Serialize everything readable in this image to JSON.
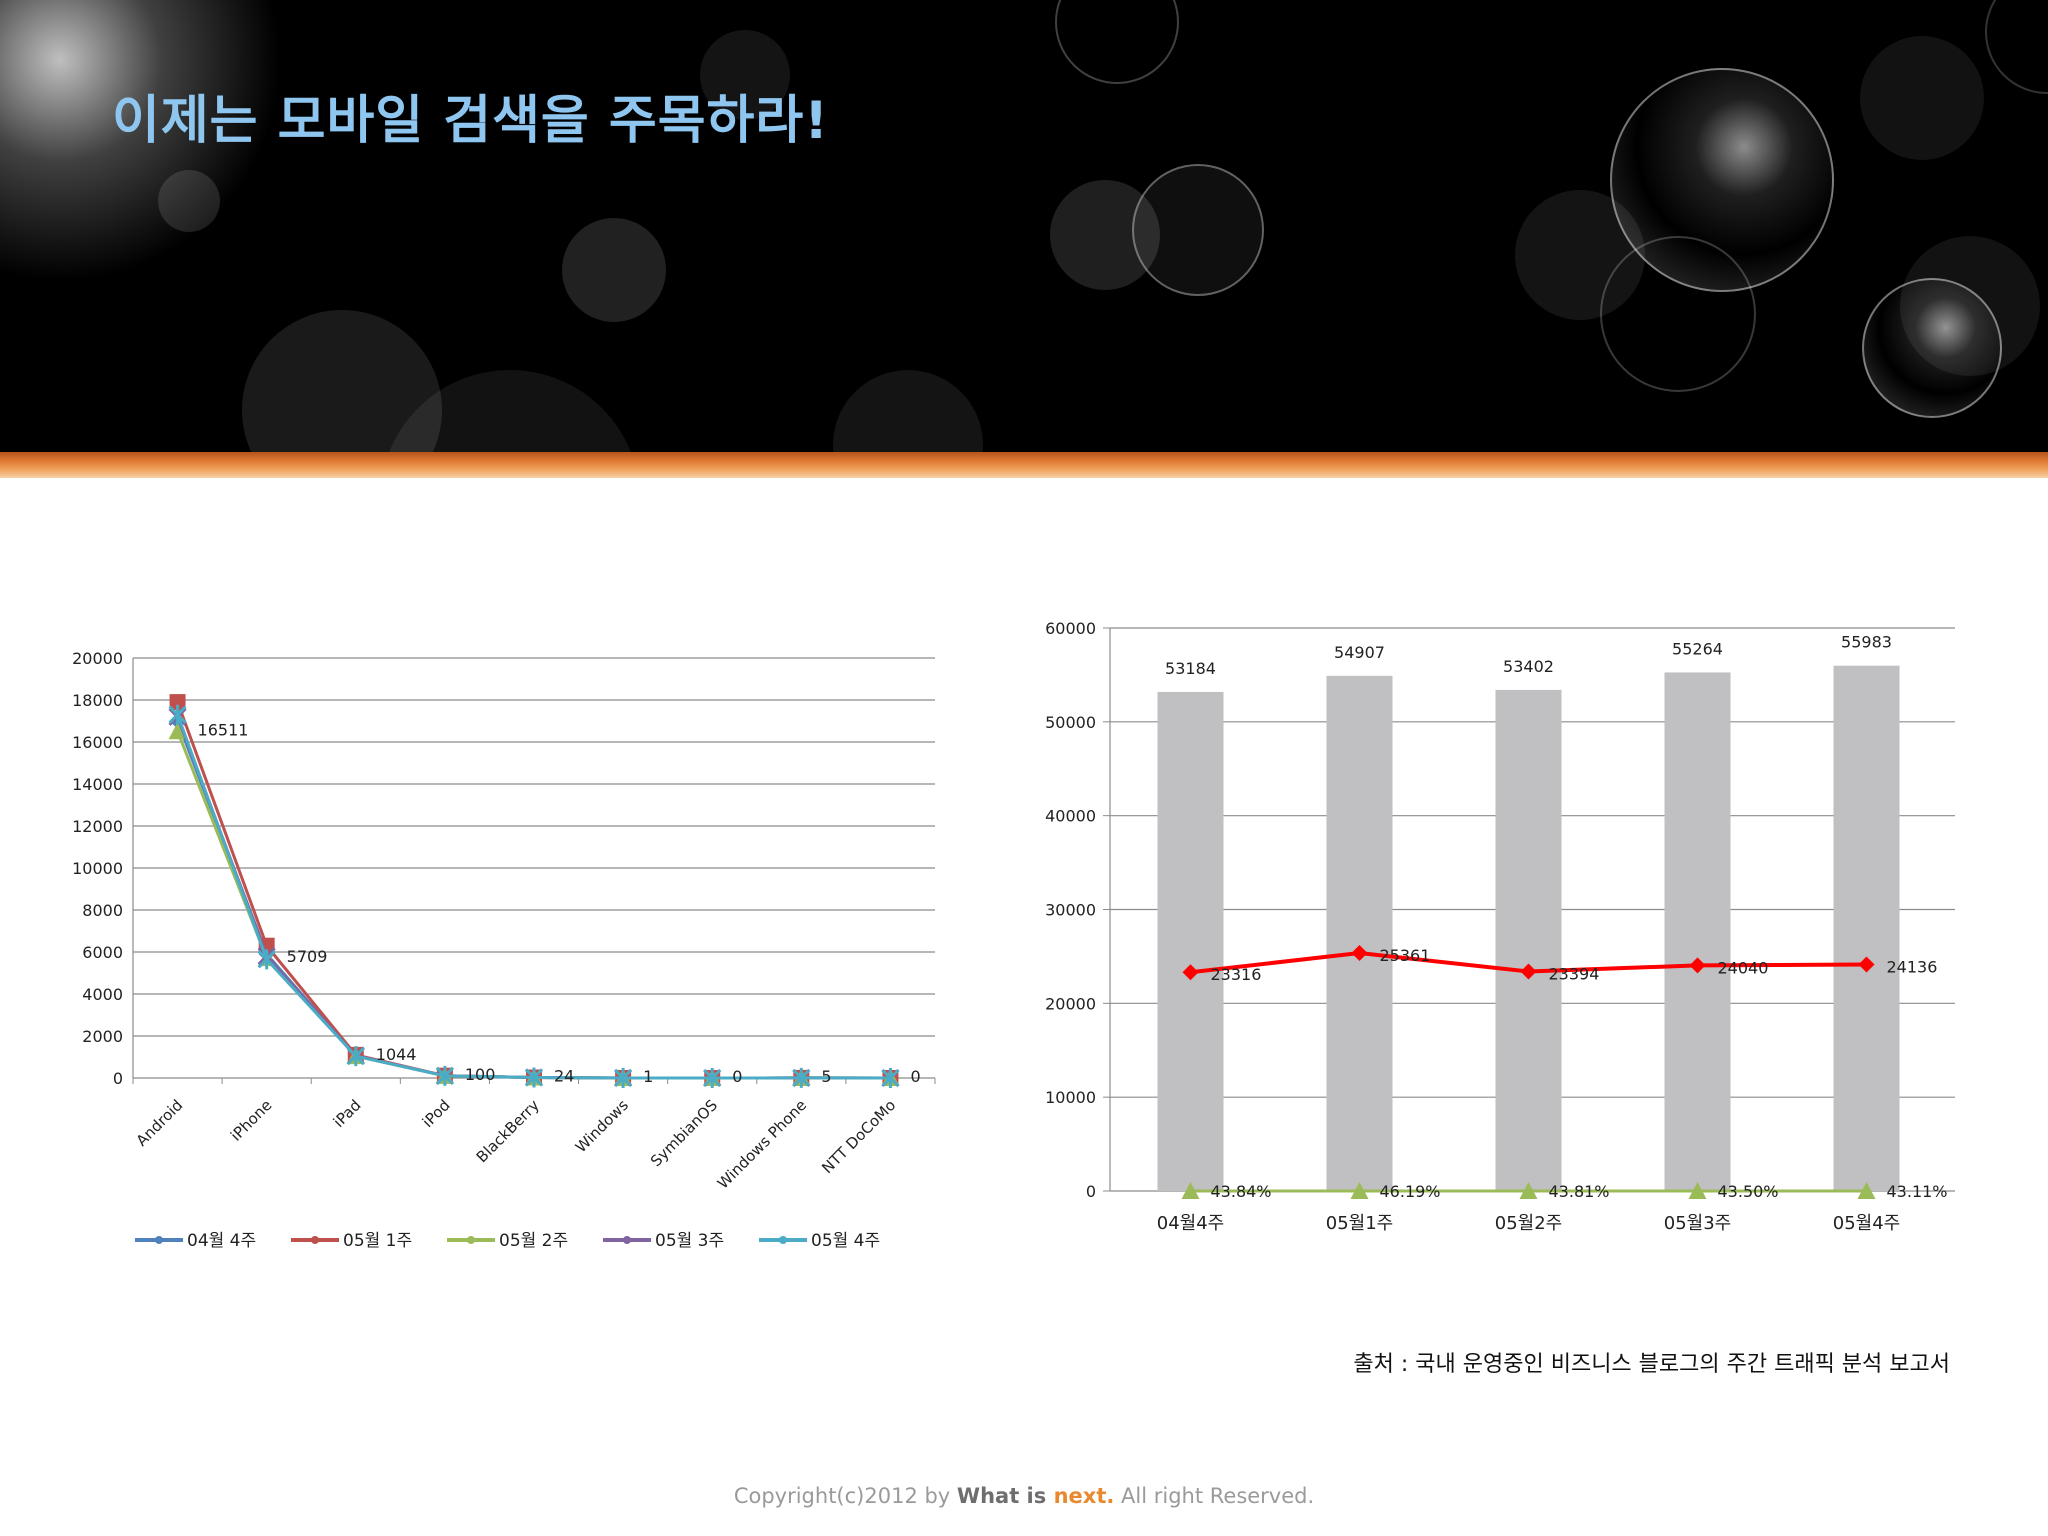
{
  "slide": {
    "title": "이제는 모바일 검색을 주목하라!",
    "source": "출처 : 국내 운영중인 비즈니스 블로그의 주간 트래픽 분석 보고서",
    "copyright": {
      "prefix": "Copyright(c)2012 by ",
      "brand1": "What is ",
      "brand2": "next.",
      "suffix": " All right Reserved."
    }
  },
  "colors": {
    "title": "#8fc6f0",
    "accent_orange": "#e07a33"
  },
  "chart_data": [
    {
      "type": "line",
      "categories": [
        "Android",
        "iPhone",
        "iPad",
        "iPod",
        "BlackBerry",
        "Windows",
        "SymbianOS",
        "Windows Phone",
        "NTT DoCoMo"
      ],
      "ylim": [
        0,
        20000
      ],
      "yticks": [
        0,
        2000,
        4000,
        6000,
        8000,
        10000,
        12000,
        14000,
        16000,
        18000,
        20000
      ],
      "grid": true,
      "legend": "bottom",
      "series": [
        {
          "name": "04월 4주",
          "color": "#4f81bd",
          "marker": "diamond",
          "values": [
            17000,
            5900,
            1050,
            110,
            25,
            1,
            0,
            5,
            0
          ]
        },
        {
          "name": "05월 1주",
          "color": "#c0504d",
          "marker": "square",
          "values": [
            17900,
            6300,
            1100,
            110,
            25,
            1,
            0,
            5,
            0
          ]
        },
        {
          "name": "05월 2주",
          "color": "#9bbb59",
          "marker": "triangle",
          "values": [
            16511,
            5709,
            1044,
            100,
            24,
            1,
            0,
            5,
            0
          ]
        },
        {
          "name": "05월 3주",
          "color": "#8064a2",
          "marker": "x",
          "values": [
            17200,
            5800,
            1060,
            105,
            24,
            1,
            0,
            5,
            0
          ]
        },
        {
          "name": "05월 4주",
          "color": "#4bacc6",
          "marker": "star",
          "values": [
            17300,
            5650,
            1040,
            100,
            24,
            1,
            0,
            5,
            0
          ]
        }
      ],
      "data_labels": {
        "series": "05월 2주",
        "values": [
          "16511",
          "5709",
          "1044",
          "100",
          "24",
          "1",
          "0",
          "5",
          "0"
        ]
      }
    },
    {
      "type": "bar",
      "categories": [
        "04월4주",
        "05월1주",
        "05월2주",
        "05월3주",
        "05월4주"
      ],
      "ylim": [
        0,
        60000
      ],
      "yticks": [
        0,
        10000,
        20000,
        30000,
        40000,
        50000,
        60000
      ],
      "grid": true,
      "series": [
        {
          "kind": "bar",
          "color": "#c0bfc1",
          "values": [
            53184,
            54907,
            53402,
            55264,
            55983
          ],
          "labels": [
            "53184",
            "54907",
            "53402",
            "55264",
            "55983"
          ]
        },
        {
          "kind": "line",
          "color": "#ff0000",
          "marker": "diamond",
          "values": [
            23316,
            25361,
            23394,
            24040,
            24136
          ],
          "labels": [
            "23316",
            "25361",
            "23394",
            "24040",
            "24136"
          ]
        },
        {
          "kind": "line",
          "color": "#9bbb59",
          "marker": "triangle",
          "values": [
            0,
            0,
            0,
            0,
            0
          ],
          "labels": [
            "43.84%",
            "46.19%",
            "43.81%",
            "43.50%",
            "43.11%"
          ]
        }
      ]
    }
  ]
}
